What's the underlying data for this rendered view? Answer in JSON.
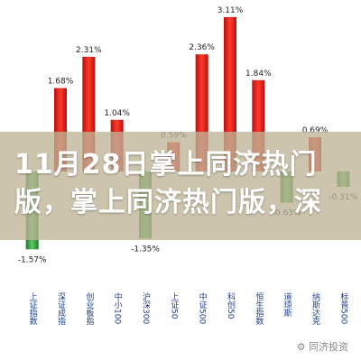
{
  "chart_data": {
    "type": "bar",
    "title": "11月28日掌上同济热门版，掌上同济热门版，深",
    "categories": [
      "上证指数",
      "深证成指",
      "创业板指",
      "中小100",
      "沪深300",
      "上证50",
      "中证500",
      "科创50",
      "恒生指数",
      "道琼斯",
      "纳斯达克",
      "标普500"
    ],
    "values": [
      -1.57,
      1.68,
      2.31,
      1.04,
      -1.35,
      0.59,
      2.36,
      3.11,
      1.84,
      -0.63,
      0.69,
      -0.31
    ],
    "value_labels": [
      "-1.57%",
      "1.68%",
      "2.31%",
      "1.04%",
      "-1.35%",
      "0.59%",
      "2.36%",
      "3.11%",
      "1.84%",
      "-0.63%",
      "0.69%",
      "-0.31%"
    ],
    "positive_color": "#e8231c",
    "negative_color": "#3aa845",
    "ylim": [
      -1.8,
      3.4
    ]
  },
  "watermark": "同济投资"
}
